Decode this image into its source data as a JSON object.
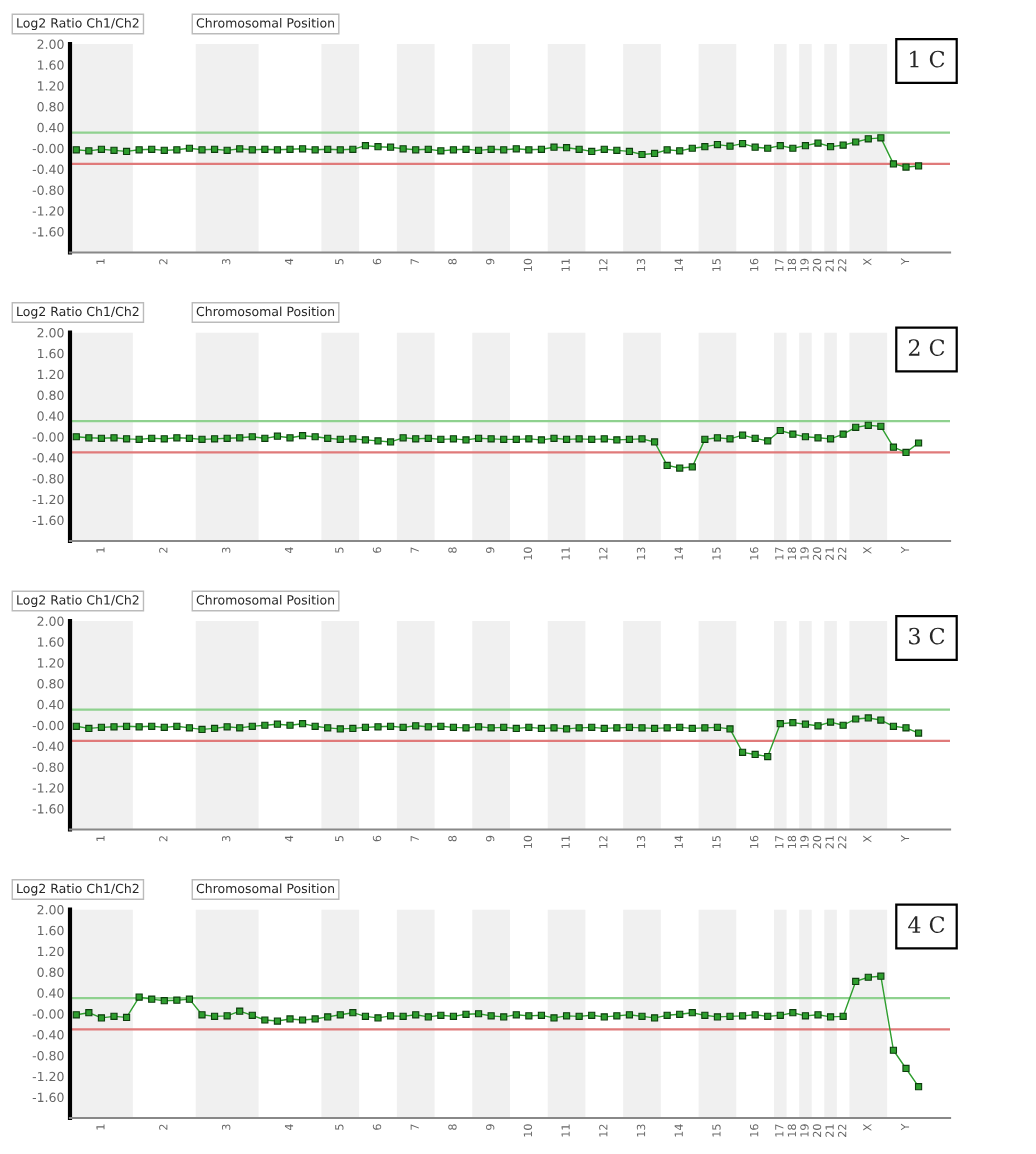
{
  "chart_data": [
    {
      "type": "line",
      "title": "1 C",
      "ylabel": "Log2 Ratio Ch1/Ch2",
      "xlabel": "Chromosomal Position",
      "marker": "square",
      "line_style": "solid",
      "categories": [
        null,
        null,
        "1",
        null,
        null,
        null,
        null,
        "2",
        null,
        null,
        null,
        null,
        "3",
        null,
        null,
        null,
        null,
        "4",
        null,
        null,
        null,
        "5",
        null,
        null,
        "6",
        null,
        null,
        "7",
        null,
        null,
        "8",
        null,
        null,
        "9",
        null,
        null,
        "10",
        null,
        null,
        "11",
        null,
        null,
        "12",
        null,
        null,
        "13",
        null,
        null,
        "14",
        null,
        null,
        "15",
        null,
        null,
        "16",
        null,
        "17",
        "18",
        "19",
        "20",
        "21",
        "22",
        null,
        "X",
        null,
        null,
        "Y",
        null
      ],
      "ylim": [
        -2,
        2
      ],
      "yticks": [
        {
          "value": 2,
          "label": "2.00"
        },
        {
          "value": 1.6,
          "label": "1.60"
        },
        {
          "value": 1.2,
          "label": "1.20"
        },
        {
          "value": 0.8,
          "label": "0.80"
        },
        {
          "value": 0.4,
          "label": "0.40"
        },
        {
          "value": 0,
          "label": "-0.00"
        },
        {
          "value": -0.4,
          "label": "-0.40"
        },
        {
          "value": -0.8,
          "label": "-0.80"
        },
        {
          "value": -1.2,
          "label": "-1.20"
        },
        {
          "value": -1.6,
          "label": "-1.60"
        }
      ],
      "ref_lines": [
        {
          "axis": "y",
          "value": 0.3,
          "color": "#8fd18f"
        },
        {
          "axis": "y",
          "value": -0.3,
          "color": "#e07a7a"
        }
      ],
      "series": [
        {
          "color": "#2e9e2e",
          "values": [
            -0.03,
            -0.05,
            -0.02,
            -0.04,
            -0.06,
            -0.03,
            -0.02,
            -0.04,
            -0.03,
            0.0,
            -0.03,
            -0.02,
            -0.04,
            -0.01,
            -0.03,
            -0.02,
            -0.03,
            -0.02,
            -0.01,
            -0.03,
            -0.02,
            -0.03,
            -0.02,
            0.05,
            0.03,
            0.02,
            -0.01,
            -0.03,
            -0.02,
            -0.05,
            -0.03,
            -0.02,
            -0.04,
            -0.02,
            -0.03,
            -0.01,
            -0.03,
            -0.02,
            0.02,
            0.01,
            -0.02,
            -0.06,
            -0.02,
            -0.04,
            -0.06,
            -0.12,
            -0.1,
            -0.03,
            -0.05,
            0.0,
            0.03,
            0.07,
            0.04,
            0.09,
            0.02,
            0.0,
            0.05,
            0.0,
            0.05,
            0.1,
            0.03,
            0.06,
            0.12,
            0.18,
            0.2,
            -0.3,
            -0.36,
            -0.34
          ]
        }
      ]
    },
    {
      "type": "line",
      "title": "2 C",
      "ylabel": "Log2 Ratio Ch1/Ch2",
      "xlabel": "Chromosomal Position",
      "marker": "square",
      "line_style": "solid",
      "categories": [
        null,
        null,
        "1",
        null,
        null,
        null,
        null,
        "2",
        null,
        null,
        null,
        null,
        "3",
        null,
        null,
        null,
        null,
        "4",
        null,
        null,
        null,
        "5",
        null,
        null,
        "6",
        null,
        null,
        "7",
        null,
        null,
        "8",
        null,
        null,
        "9",
        null,
        null,
        "10",
        null,
        null,
        "11",
        null,
        null,
        "12",
        null,
        null,
        "13",
        null,
        null,
        "14",
        null,
        null,
        "15",
        null,
        null,
        "16",
        null,
        "17",
        "18",
        "19",
        "20",
        "21",
        "22",
        null,
        "X",
        null,
        null,
        "Y",
        null
      ],
      "ylim": [
        -2,
        2
      ],
      "yticks": [
        {
          "value": 2,
          "label": "2.00"
        },
        {
          "value": 1.6,
          "label": "1.60"
        },
        {
          "value": 1.2,
          "label": "1.20"
        },
        {
          "value": 0.8,
          "label": "0.80"
        },
        {
          "value": 0.4,
          "label": "0.40"
        },
        {
          "value": 0,
          "label": "-0.00"
        },
        {
          "value": -0.4,
          "label": "-0.40"
        },
        {
          "value": -0.8,
          "label": "-0.80"
        },
        {
          "value": -1.2,
          "label": "-1.20"
        },
        {
          "value": -1.6,
          "label": "-1.60"
        }
      ],
      "ref_lines": [
        {
          "axis": "y",
          "value": 0.3,
          "color": "#8fd18f"
        },
        {
          "axis": "y",
          "value": -0.3,
          "color": "#e07a7a"
        }
      ],
      "series": [
        {
          "color": "#2e9e2e",
          "values": [
            0.0,
            -0.02,
            -0.03,
            -0.02,
            -0.04,
            -0.05,
            -0.03,
            -0.04,
            -0.02,
            -0.03,
            -0.05,
            -0.04,
            -0.03,
            -0.02,
            0.0,
            -0.03,
            0.01,
            -0.02,
            0.02,
            0.0,
            -0.03,
            -0.05,
            -0.04,
            -0.06,
            -0.08,
            -0.1,
            -0.02,
            -0.04,
            -0.03,
            -0.05,
            -0.04,
            -0.06,
            -0.03,
            -0.04,
            -0.05,
            -0.05,
            -0.04,
            -0.06,
            -0.03,
            -0.05,
            -0.04,
            -0.05,
            -0.04,
            -0.06,
            -0.05,
            -0.04,
            -0.1,
            -0.55,
            -0.6,
            -0.58,
            -0.05,
            -0.02,
            -0.04,
            0.03,
            -0.03,
            -0.08,
            0.12,
            0.05,
            0.0,
            -0.02,
            -0.04,
            0.05,
            0.18,
            0.22,
            0.2,
            -0.2,
            -0.3,
            -0.12
          ]
        }
      ]
    },
    {
      "type": "line",
      "title": "3 C",
      "ylabel": "Log2 Ratio Ch1/Ch2",
      "xlabel": "Chromosomal Position",
      "marker": "square",
      "line_style": "solid",
      "categories": [
        null,
        null,
        "1",
        null,
        null,
        null,
        null,
        "2",
        null,
        null,
        null,
        null,
        "3",
        null,
        null,
        null,
        null,
        "4",
        null,
        null,
        null,
        "5",
        null,
        null,
        "6",
        null,
        null,
        "7",
        null,
        null,
        "8",
        null,
        null,
        "9",
        null,
        null,
        "10",
        null,
        null,
        "11",
        null,
        null,
        "12",
        null,
        null,
        "13",
        null,
        null,
        "14",
        null,
        null,
        "15",
        null,
        null,
        "16",
        null,
        "17",
        "18",
        "19",
        "20",
        "21",
        "22",
        null,
        "X",
        null,
        null,
        "Y",
        null
      ],
      "ylim": [
        -2,
        2
      ],
      "yticks": [
        {
          "value": 2,
          "label": "2.00"
        },
        {
          "value": 1.6,
          "label": "1.60"
        },
        {
          "value": 1.2,
          "label": "1.20"
        },
        {
          "value": 0.8,
          "label": "0.80"
        },
        {
          "value": 0.4,
          "label": "0.40"
        },
        {
          "value": 0,
          "label": "-0.00"
        },
        {
          "value": -0.4,
          "label": "-0.40"
        },
        {
          "value": -0.8,
          "label": "-0.80"
        },
        {
          "value": -1.2,
          "label": "-1.20"
        },
        {
          "value": -1.6,
          "label": "-1.60"
        }
      ],
      "ref_lines": [
        {
          "axis": "y",
          "value": 0.3,
          "color": "#8fd18f"
        },
        {
          "axis": "y",
          "value": -0.3,
          "color": "#e07a7a"
        }
      ],
      "series": [
        {
          "color": "#2e9e2e",
          "values": [
            -0.02,
            -0.06,
            -0.04,
            -0.03,
            -0.02,
            -0.03,
            -0.02,
            -0.04,
            -0.02,
            -0.05,
            -0.08,
            -0.06,
            -0.03,
            -0.05,
            -0.02,
            0.0,
            0.02,
            0.0,
            0.03,
            -0.02,
            -0.05,
            -0.07,
            -0.06,
            -0.04,
            -0.03,
            -0.02,
            -0.04,
            -0.01,
            -0.03,
            -0.02,
            -0.04,
            -0.05,
            -0.03,
            -0.05,
            -0.04,
            -0.06,
            -0.04,
            -0.06,
            -0.05,
            -0.07,
            -0.05,
            -0.04,
            -0.06,
            -0.05,
            -0.04,
            -0.05,
            -0.06,
            -0.05,
            -0.04,
            -0.06,
            -0.05,
            -0.04,
            -0.07,
            -0.52,
            -0.56,
            -0.6,
            0.03,
            0.05,
            0.02,
            -0.01,
            0.06,
            0.0,
            0.12,
            0.14,
            0.1,
            -0.02,
            -0.05,
            -0.15
          ]
        }
      ]
    },
    {
      "type": "line",
      "title": "4 C",
      "ylabel": "Log2 Ratio Ch1/Ch2",
      "xlabel": "Chromosomal Position",
      "marker": "square",
      "line_style": "solid",
      "categories": [
        null,
        null,
        "1",
        null,
        null,
        null,
        null,
        "2",
        null,
        null,
        null,
        null,
        "3",
        null,
        null,
        null,
        null,
        "4",
        null,
        null,
        null,
        "5",
        null,
        null,
        "6",
        null,
        null,
        "7",
        null,
        null,
        "8",
        null,
        null,
        "9",
        null,
        null,
        "10",
        null,
        null,
        "11",
        null,
        null,
        "12",
        null,
        null,
        "13",
        null,
        null,
        "14",
        null,
        null,
        "15",
        null,
        null,
        "16",
        null,
        "17",
        "18",
        "19",
        "20",
        "21",
        "22",
        null,
        "X",
        null,
        null,
        "Y",
        null
      ],
      "ylim": [
        -2,
        2
      ],
      "yticks": [
        {
          "value": 2,
          "label": "2.00"
        },
        {
          "value": 1.6,
          "label": "1.60"
        },
        {
          "value": 1.2,
          "label": "1.20"
        },
        {
          "value": 0.8,
          "label": "0.80"
        },
        {
          "value": 0.4,
          "label": "0.40"
        },
        {
          "value": 0,
          "label": "-0.00"
        },
        {
          "value": -0.4,
          "label": "-0.40"
        },
        {
          "value": -0.8,
          "label": "-0.80"
        },
        {
          "value": -1.2,
          "label": "-1.20"
        },
        {
          "value": -1.6,
          "label": "-1.60"
        }
      ],
      "ref_lines": [
        {
          "axis": "y",
          "value": 0.3,
          "color": "#8fd18f"
        },
        {
          "axis": "y",
          "value": -0.3,
          "color": "#e07a7a"
        }
      ],
      "series": [
        {
          "color": "#2e9e2e",
          "values": [
            -0.02,
            0.02,
            -0.08,
            -0.05,
            -0.07,
            0.32,
            0.28,
            0.25,
            0.26,
            0.28,
            -0.02,
            -0.05,
            -0.04,
            0.05,
            -0.03,
            -0.12,
            -0.14,
            -0.1,
            -0.12,
            -0.1,
            -0.06,
            -0.02,
            0.02,
            -0.05,
            -0.08,
            -0.04,
            -0.05,
            -0.02,
            -0.06,
            -0.03,
            -0.05,
            -0.01,
            0.0,
            -0.04,
            -0.06,
            -0.02,
            -0.04,
            -0.03,
            -0.08,
            -0.04,
            -0.05,
            -0.03,
            -0.06,
            -0.04,
            -0.02,
            -0.05,
            -0.08,
            -0.03,
            -0.01,
            0.02,
            -0.03,
            -0.06,
            -0.05,
            -0.04,
            -0.02,
            -0.05,
            -0.03,
            0.02,
            -0.04,
            -0.02,
            -0.06,
            -0.05,
            0.62,
            0.7,
            0.72,
            -0.7,
            -1.05,
            -1.4
          ]
        }
      ]
    }
  ]
}
